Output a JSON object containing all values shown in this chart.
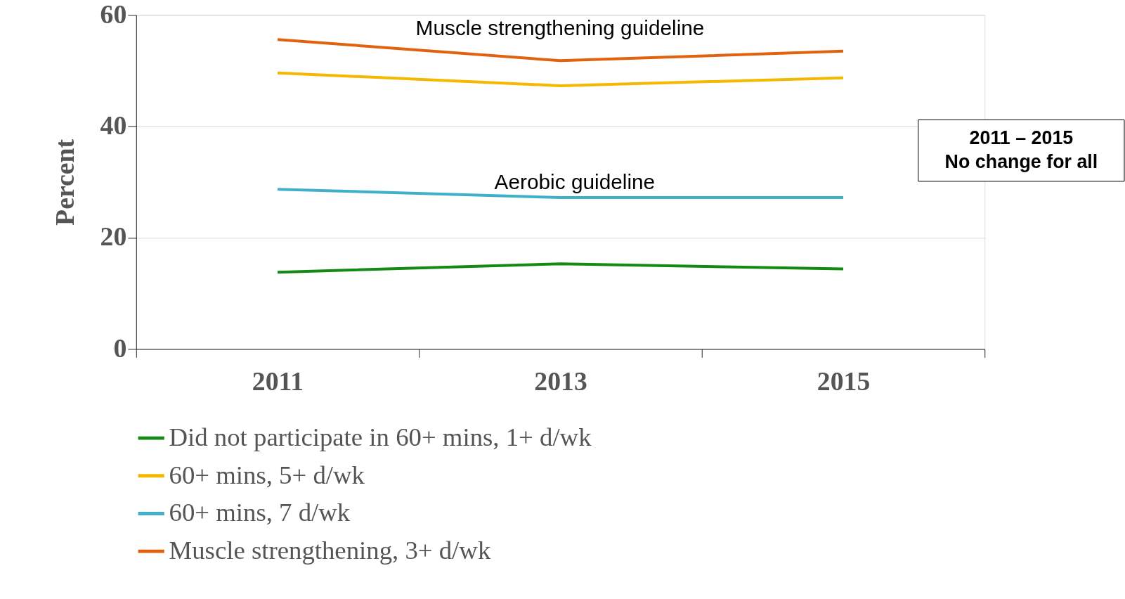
{
  "chart_data": {
    "type": "line",
    "ylabel": "Percent",
    "categories": [
      "2011",
      "2013",
      "2015"
    ],
    "series": [
      {
        "name": "Did not participate in 60+ mins, 1+ d/wk",
        "color": "#138a13",
        "values": [
          13.8,
          15.3,
          14.4
        ]
      },
      {
        "name": "60+ mins, 5+ d/wk",
        "color": "#f5b800",
        "values": [
          49.6,
          47.3,
          48.7
        ]
      },
      {
        "name": "60+ mins, 7 d/wk",
        "color": "#40afc9",
        "values": [
          28.7,
          27.2,
          27.2
        ]
      },
      {
        "name": "Muscle strengthening, 3+ d/wk",
        "color": "#e0620f",
        "values": [
          55.6,
          51.8,
          53.5
        ]
      }
    ],
    "ylim": [
      0,
      60
    ],
    "yticks": [
      0,
      20,
      40,
      60
    ],
    "grid": "y",
    "legend": "bottom",
    "marker": "none",
    "line_style": "solid",
    "annotations": [
      "Muscle strengthening guideline",
      "Aerobic guideline",
      "2011 – 2015\nNo change for all"
    ]
  }
}
